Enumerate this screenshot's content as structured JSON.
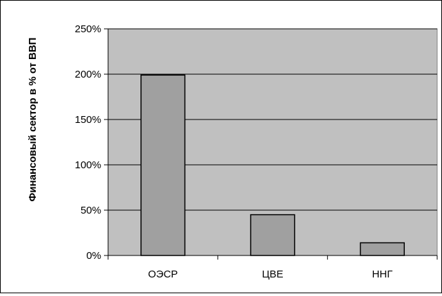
{
  "chart_data": {
    "type": "bar",
    "title": "",
    "xlabel": "",
    "ylabel": "Финансовый сектор  в % от ВВП",
    "categories": [
      "ОЭСР",
      "ЦВЕ",
      "ННГ"
    ],
    "values": [
      199,
      45,
      14
    ],
    "unit": "%",
    "ylim": [
      0,
      250
    ],
    "yticks": [
      0,
      50,
      100,
      150,
      200,
      250
    ],
    "ytick_labels": [
      "0%",
      "50%",
      "100%",
      "150%",
      "200%",
      "250%"
    ],
    "grid": "horizontal",
    "plot_background": "#c0c0c0",
    "bar_color": "#a0a0a0",
    "bar_border_color": "#000000"
  }
}
